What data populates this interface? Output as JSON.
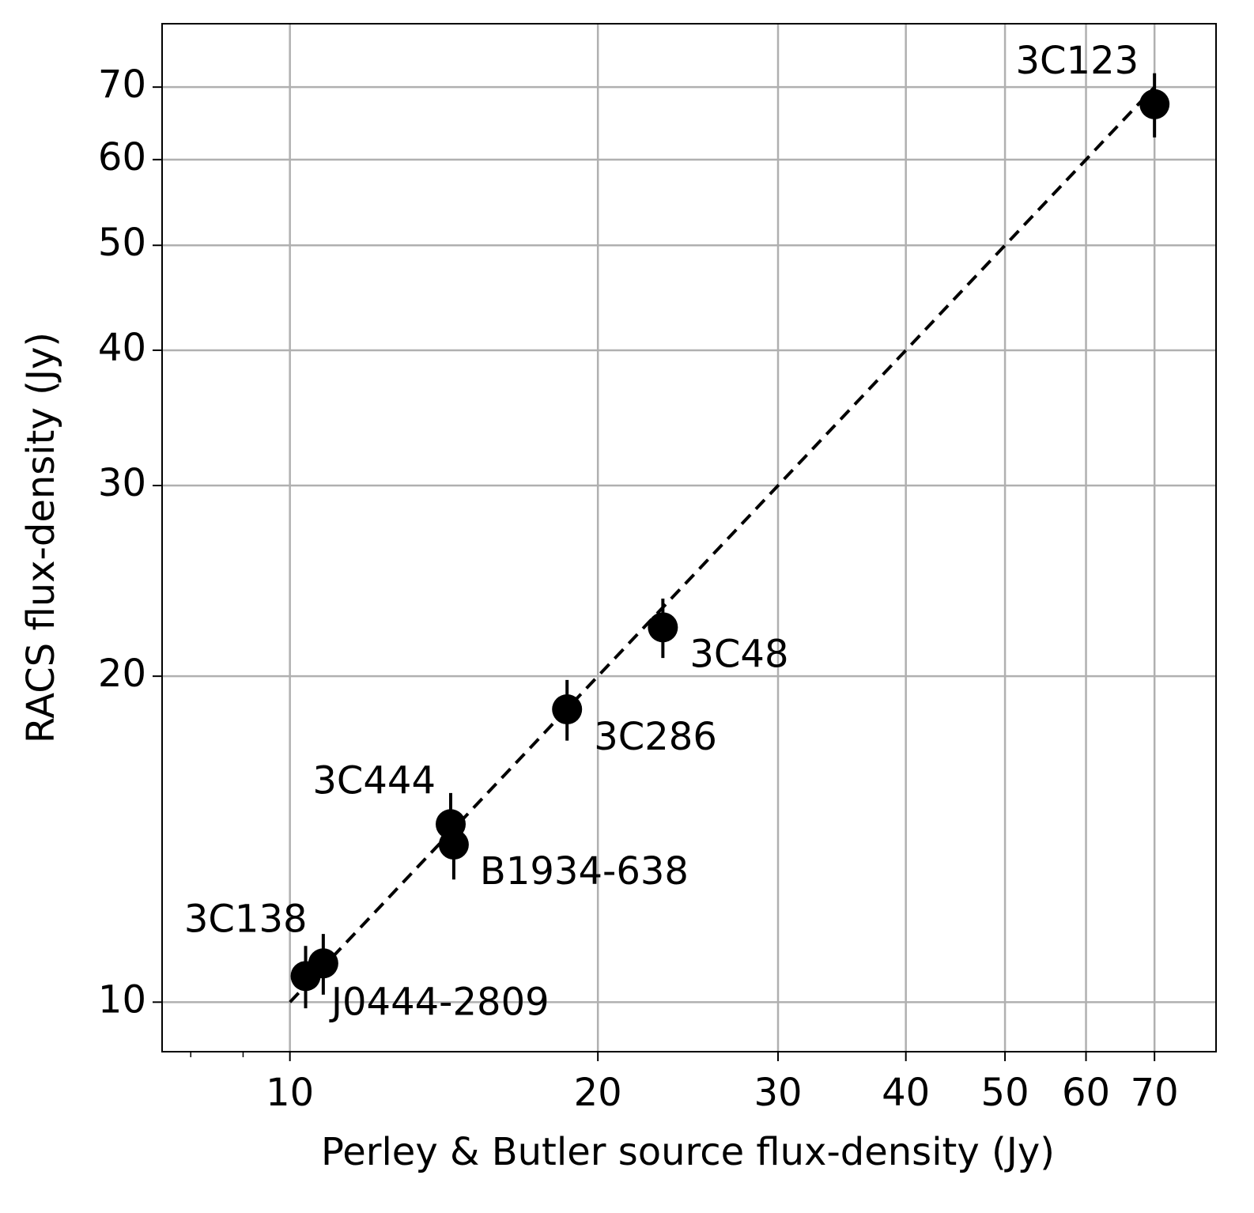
{
  "chart_data": {
    "type": "scatter",
    "xlabel": "Perley & Butler source flux-density (Jy)",
    "ylabel": "RACS flux-density (Jy)",
    "xscale": "log",
    "yscale": "log",
    "xlim": [
      7.5,
      80.4
    ],
    "ylim": [
      9,
      80.1
    ],
    "xticks": [
      10,
      20,
      30,
      40,
      50,
      60,
      70
    ],
    "xminorticks": [
      8,
      9
    ],
    "yticks": [
      10,
      20,
      30,
      40,
      50,
      60,
      70
    ],
    "grid": true,
    "color": "#000000",
    "point_labels": [
      "3C138",
      "J0444-2809",
      "3C444",
      "B1934-638",
      "3C286",
      "3C48",
      "3C123"
    ],
    "x": [
      10.36,
      10.78,
      14.36,
      14.46,
      18.66,
      23.15,
      70.0
    ],
    "y": [
      10.57,
      10.86,
      14.6,
      13.98,
      18.64,
      22.19,
      67.5
    ],
    "yerr": [
      0.7,
      0.7,
      1.0,
      1.0,
      1.2,
      1.4,
      4.6
    ],
    "reference_line": {
      "x": [
        10,
        70
      ],
      "y": [
        10,
        70
      ],
      "style": "dashed",
      "color": "#000000"
    }
  }
}
